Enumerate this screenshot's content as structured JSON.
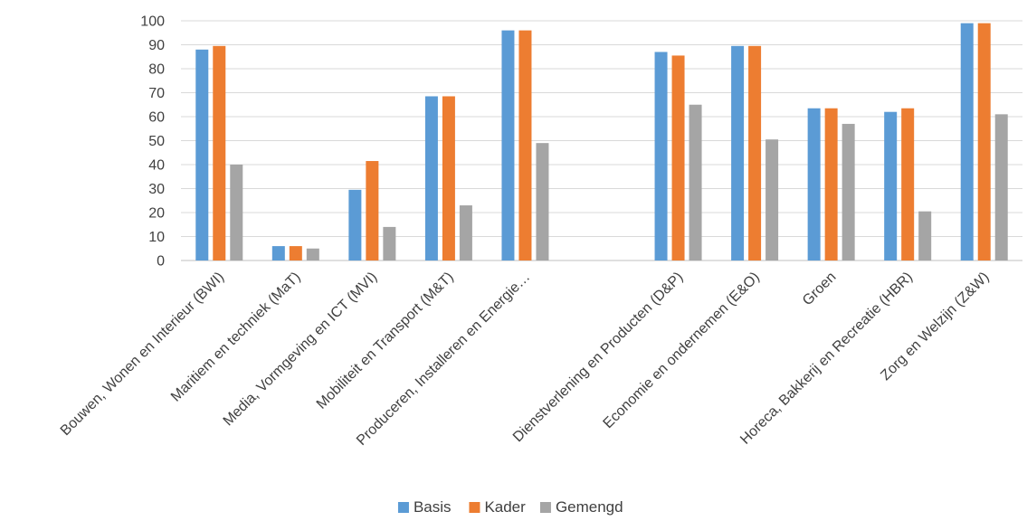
{
  "chart_data": {
    "type": "bar",
    "title": "",
    "xlabel": "",
    "ylabel": "",
    "ylim": [
      0,
      100
    ],
    "yticks": [
      0,
      10,
      20,
      30,
      40,
      50,
      60,
      70,
      80,
      90,
      100
    ],
    "grid": true,
    "legend_position": "bottom",
    "categories": [
      "Bouwen, Wonen en Interieur (BWI)",
      "Maritiem en techniek (MaT)",
      "Media, Vormgeving en ICT (MVI)",
      "Mobiliteit en Transport (M&T)",
      "Produceren, Installeren en Energie…",
      "",
      "Dienstverlening en Producten (D&P)",
      "Economie en ondernemen (E&O)",
      "Groen",
      "Horeca, Bakkerij en Recreatie (HBR)",
      "Zorg en Welzijn (Z&W)"
    ],
    "series": [
      {
        "name": "Basis",
        "color": "#5b9bd5",
        "values": [
          88,
          6,
          29.5,
          68.5,
          96,
          null,
          87,
          89.5,
          63.5,
          62,
          99
        ]
      },
      {
        "name": "Kader",
        "color": "#ed7d31",
        "values": [
          89.5,
          6,
          41.5,
          68.5,
          96,
          null,
          85.5,
          89.5,
          63.5,
          63.5,
          99
        ]
      },
      {
        "name": "Gemengd",
        "color": "#a5a5a5",
        "values": [
          40,
          5,
          14,
          23,
          49,
          null,
          65,
          50.5,
          57,
          20.5,
          61
        ]
      }
    ]
  }
}
